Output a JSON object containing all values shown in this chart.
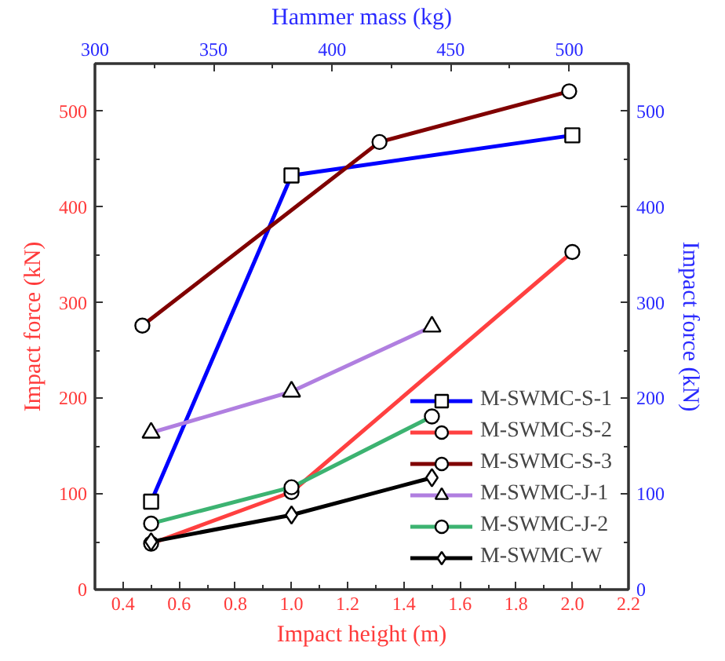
{
  "chart_data": {
    "type": "line",
    "xlabel": "Impact height (m)",
    "ylabel": "Impact force (kN)",
    "x2label": "Hammer mass (kg)",
    "y2label": "Impact force (kN)",
    "xlim": [
      0.3,
      2.2
    ],
    "xticks": [
      0.4,
      0.6,
      0.8,
      {
        "value": 1.0,
        "label": "1.0"
      },
      1.2,
      1.4,
      1.6,
      1.8,
      {
        "value": 2.0,
        "label": "2.0"
      },
      2.2
    ],
    "ylim": [
      0,
      550
    ],
    "yticks": [
      0,
      100,
      200,
      300,
      400,
      500
    ],
    "x2lim": [
      300,
      525
    ],
    "x2ticks": [
      300,
      350,
      400,
      450,
      500
    ],
    "y2lim": [
      0,
      550
    ],
    "y2ticks": [
      0,
      100,
      200,
      300,
      400,
      500
    ],
    "grid": false,
    "legend": "bottom right",
    "series": [
      {
        "name": "M-SWMC-S-1",
        "color": "#0000ff",
        "marker": "square",
        "x": [
          0.5,
          1.0,
          2.0
        ],
        "values": [
          92,
          433,
          475
        ]
      },
      {
        "name": "M-SWMC-S-2",
        "color": "#ff4040",
        "marker": "circle",
        "x": [
          0.5,
          1.0,
          2.0
        ],
        "values": [
          48,
          102,
          353
        ]
      },
      {
        "name": "M-SWMC-S-3",
        "color": "#800000",
        "marker": "circle",
        "axis": "x2",
        "x": [
          320,
          420,
          500
        ],
        "values": [
          276,
          468,
          521
        ]
      },
      {
        "name": "M-SWMC-J-1",
        "color": "#b07fe0",
        "marker": "triangle",
        "x": [
          0.5,
          1.0,
          1.5
        ],
        "values": [
          164,
          207,
          275
        ]
      },
      {
        "name": "M-SWMC-J-2",
        "color": "#3cb371",
        "marker": "circle",
        "x": [
          0.5,
          1.0,
          1.5
        ],
        "values": [
          69,
          107,
          181
        ]
      },
      {
        "name": "M-SWMC-W",
        "color": "#000000",
        "marker": "diamond",
        "x": [
          0.5,
          1.0,
          1.5
        ],
        "values": [
          50,
          78,
          117
        ]
      }
    ]
  }
}
